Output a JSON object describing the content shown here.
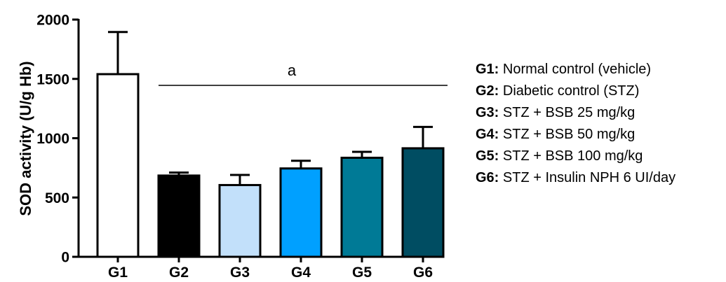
{
  "chart_data": {
    "type": "bar",
    "ylabel": "SOD activity (U/g Hb)",
    "ylim": [
      0,
      2000
    ],
    "yticks": [
      "0",
      "500",
      "1000",
      "1500",
      "2000"
    ],
    "categories": [
      "G1",
      "G2",
      "G3",
      "G4",
      "G5",
      "G6"
    ],
    "values": [
      1540,
      685,
      605,
      745,
      835,
      915
    ],
    "errors": [
      355,
      25,
      85,
      65,
      50,
      180
    ],
    "colors": [
      "#ffffff",
      "#000000",
      "#c2e0fa",
      "#00a0ff",
      "#007a96",
      "#004d62"
    ],
    "significance": {
      "label": "a",
      "from": "G2",
      "to": "G6"
    },
    "legend": {
      "placement": "right",
      "items": [
        {
          "key": "G1:",
          "text": " Normal control (vehicle)"
        },
        {
          "key": "G2:",
          "text": " Diabetic control (STZ)"
        },
        {
          "key": "G3:",
          "text": " STZ + BSB 25 mg/kg"
        },
        {
          "key": "G4:",
          "text": " STZ + BSB 50 mg/kg"
        },
        {
          "key": "G5:",
          "text": " STZ + BSB 100 mg/kg"
        },
        {
          "key": "G6:",
          "text": " STZ + Insulin NPH 6 UI/day"
        }
      ]
    }
  }
}
